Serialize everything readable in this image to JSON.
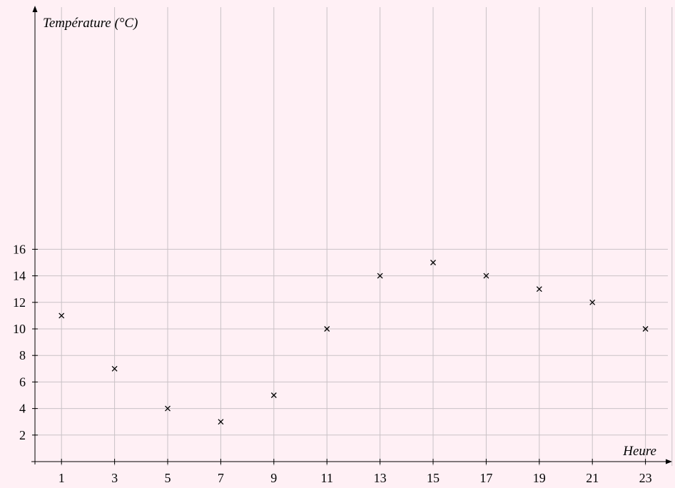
{
  "chart_data": {
    "type": "scatter",
    "title": "",
    "xlabel": "Heure",
    "ylabel": "Température (°C)",
    "x": [
      1,
      3,
      5,
      7,
      9,
      11,
      13,
      15,
      17,
      19,
      21,
      23
    ],
    "y": [
      11,
      7,
      4,
      3,
      5,
      10,
      14,
      15,
      14,
      13,
      12,
      10
    ],
    "x_ticks": [
      1,
      3,
      5,
      7,
      9,
      11,
      13,
      15,
      17,
      19,
      21,
      23
    ],
    "y_ticks": [
      2,
      4,
      6,
      8,
      10,
      12,
      14,
      16
    ],
    "xlim": [
      0,
      24
    ],
    "ylim": [
      0,
      17
    ],
    "marker": "x",
    "grid": true
  },
  "colors": {
    "background": "#fff0f5",
    "grid": "#c9c2c6",
    "axis": "#000000",
    "marker": "#000000"
  }
}
